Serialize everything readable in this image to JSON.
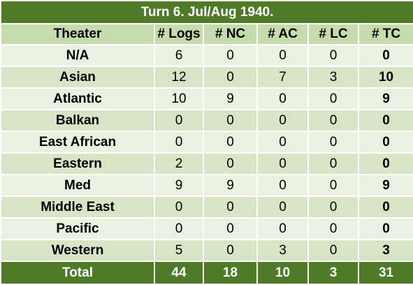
{
  "table": {
    "title": "Turn 6.  Jul/Aug 1940.",
    "columns": [
      "Theater",
      "# Logs",
      "# NC",
      "# AC",
      "# LC",
      "# TC"
    ],
    "rows": [
      [
        "N/A",
        6,
        0,
        0,
        0,
        0
      ],
      [
        "Asian",
        12,
        0,
        7,
        3,
        10
      ],
      [
        "Atlantic",
        10,
        9,
        0,
        0,
        9
      ],
      [
        "Balkan",
        0,
        0,
        0,
        0,
        0
      ],
      [
        "East African",
        0,
        0,
        0,
        0,
        0
      ],
      [
        "Eastern",
        2,
        0,
        0,
        0,
        0
      ],
      [
        "Med",
        9,
        9,
        0,
        0,
        9
      ],
      [
        "Middle East",
        0,
        0,
        0,
        0,
        0
      ],
      [
        "Pacific",
        0,
        0,
        0,
        0,
        0
      ],
      [
        "Western",
        5,
        0,
        3,
        0,
        3
      ]
    ],
    "total": [
      "Total",
      44,
      18,
      10,
      3,
      31
    ]
  }
}
